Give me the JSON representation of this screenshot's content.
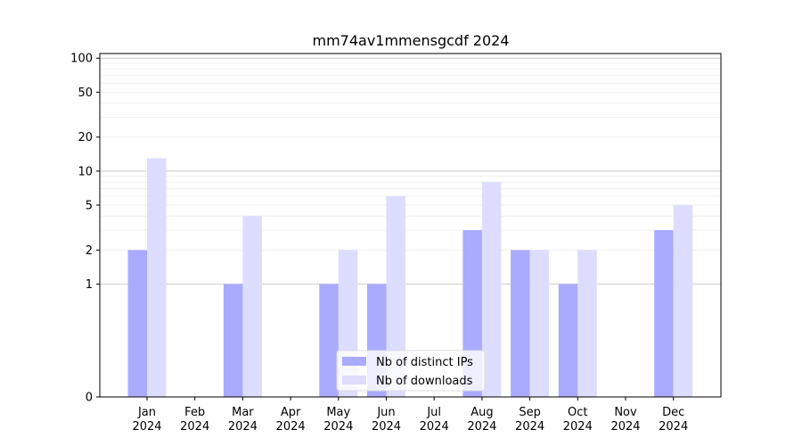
{
  "chart_data": {
    "type": "bar",
    "title": "mm74av1mmensgcdf 2024",
    "xlabel": "",
    "ylabel": "",
    "y_scale": "symlog",
    "ylim": [
      0,
      110
    ],
    "y_ticks": [
      0,
      1,
      2,
      5,
      10,
      20,
      50,
      100
    ],
    "y_tick_labels": [
      "0",
      "1",
      "2",
      "5",
      "10",
      "20",
      "50",
      "100"
    ],
    "grid": "horizontal",
    "legend_position": "bottom-center",
    "categories": [
      [
        "Jan",
        "2024"
      ],
      [
        "Feb",
        "2024"
      ],
      [
        "Mar",
        "2024"
      ],
      [
        "Apr",
        "2024"
      ],
      [
        "May",
        "2024"
      ],
      [
        "Jun",
        "2024"
      ],
      [
        "Jul",
        "2024"
      ],
      [
        "Aug",
        "2024"
      ],
      [
        "Sep",
        "2024"
      ],
      [
        "Oct",
        "2024"
      ],
      [
        "Nov",
        "2024"
      ],
      [
        "Dec",
        "2024"
      ]
    ],
    "series": [
      {
        "name": "Nb of distinct IPs",
        "color": "#aaaaff",
        "values": [
          2,
          0,
          1,
          0,
          1,
          1,
          0,
          3,
          2,
          1,
          0,
          3
        ]
      },
      {
        "name": "Nb of downloads",
        "color": "#ddddff",
        "values": [
          13,
          0,
          4,
          0,
          2,
          6,
          0,
          8,
          2,
          2,
          0,
          5
        ]
      }
    ]
  }
}
